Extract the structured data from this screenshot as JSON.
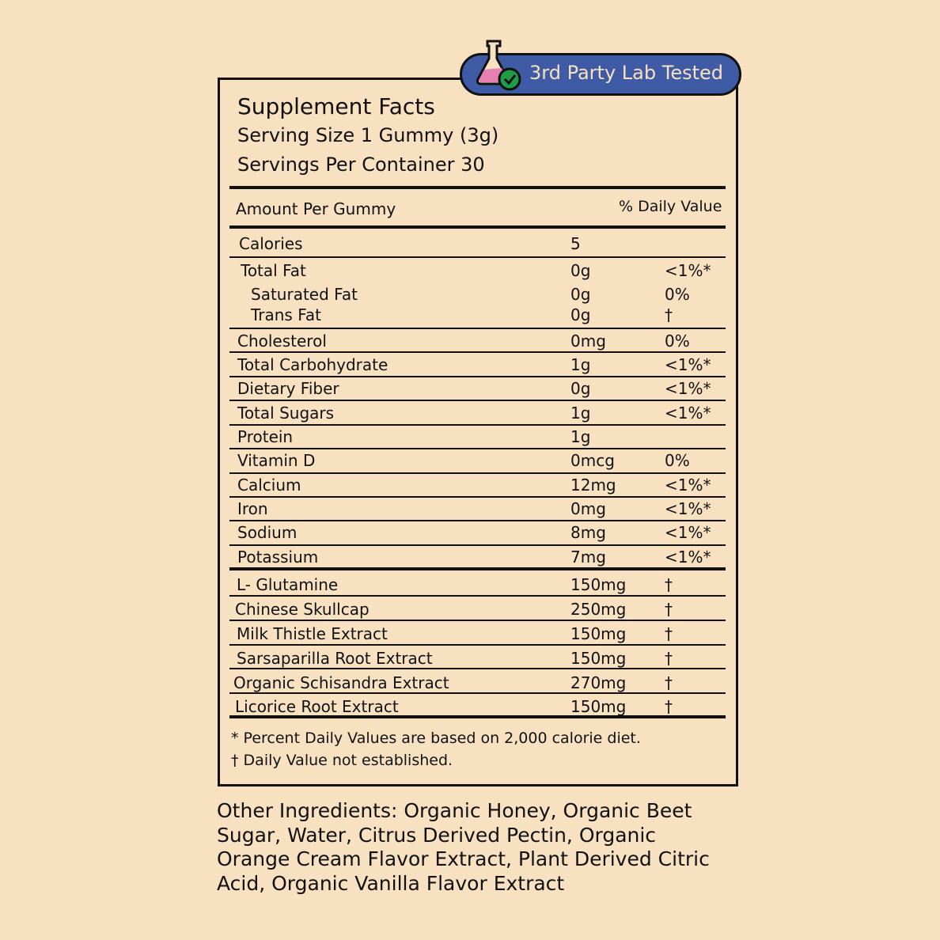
{
  "badge": {
    "label": "3rd Party Lab Tested",
    "icon": "lab-flask-check-icon",
    "color": "#3f5ba6"
  },
  "header": {
    "title": "Supplement Facts",
    "serving_size": "Serving Size 1 Gummy (3g)",
    "servings_per_container": "Servings Per Container 30"
  },
  "columns": {
    "amount": "Amount Per Gummy",
    "daily_value": "% Daily Value"
  },
  "nutrients": [
    {
      "name": "Calories",
      "amount": "5",
      "dv": ""
    },
    {
      "name": "Total Fat",
      "amount": "0g",
      "dv": "<1%*"
    },
    {
      "name": "Saturated Fat",
      "amount": "0g",
      "dv": "0%"
    },
    {
      "name": "Trans Fat",
      "amount": "0g",
      "dv": "†"
    },
    {
      "name": "Cholesterol",
      "amount": "0mg",
      "dv": "0%"
    },
    {
      "name": "Total Carbohydrate",
      "amount": "1g",
      "dv": "<1%*"
    },
    {
      "name": "Dietary Fiber",
      "amount": "0g",
      "dv": "<1%*"
    },
    {
      "name": "Total Sugars",
      "amount": "1g",
      "dv": "<1%*"
    },
    {
      "name": "Protein",
      "amount": "1g",
      "dv": ""
    },
    {
      "name": "Vitamin D",
      "amount": "0mcg",
      "dv": "0%"
    },
    {
      "name": "Calcium",
      "amount": "12mg",
      "dv": "<1%*"
    },
    {
      "name": "Iron",
      "amount": "0mg",
      "dv": "<1%*"
    },
    {
      "name": "Sodium",
      "amount": "8mg",
      "dv": "<1%*"
    },
    {
      "name": "Potassium",
      "amount": "7mg",
      "dv": "<1%*"
    },
    {
      "name": "L- Glutamine",
      "amount": "150mg",
      "dv": "†"
    },
    {
      "name": "Chinese Skullcap",
      "amount": "250mg",
      "dv": "†"
    },
    {
      "name": "Milk Thistle Extract",
      "amount": "150mg",
      "dv": "†"
    },
    {
      "name": "Sarsaparilla Root Extract",
      "amount": "150mg",
      "dv": "†"
    },
    {
      "name": "Organic Schisandra Extract",
      "amount": "270mg",
      "dv": "†"
    },
    {
      "name": "Licorice Root Extract",
      "amount": "150mg",
      "dv": "†"
    }
  ],
  "footnotes": [
    "* Percent Daily Values are based on 2,000 calorie diet.",
    "† Daily Value not established."
  ],
  "other_ingredients": "Other Ingredients: Organic Honey, Organic Beet Sugar, Water, Citrus Derived Pectin, Organic Orange Cream Flavor Extract, Plant Derived Citric Acid, Organic Vanilla Flavor Extract"
}
